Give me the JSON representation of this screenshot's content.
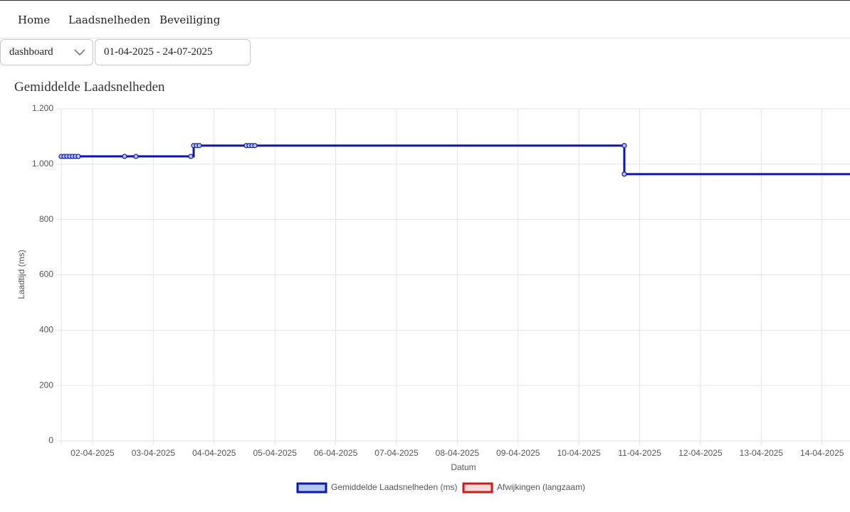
{
  "nav": {
    "items": [
      "Home",
      "Laadsnelheden",
      "Beveiliging"
    ]
  },
  "filters": {
    "page_select": "dashboard",
    "date_range": "01-04-2025 - 24-07-2025"
  },
  "heading": "Gemiddelde Laadsnelheden",
  "chart_data": {
    "type": "step-line",
    "xlabel": "Datum",
    "ylabel": "Laadtijd (ms)",
    "xlim": [
      "2025-04-01T11:38",
      "2025-04-14T11:02"
    ],
    "xticks": [
      {
        "value": "2025-04-02T00:00",
        "label": "02-04-2025"
      },
      {
        "value": "2025-04-03T00:00",
        "label": "03-04-2025"
      },
      {
        "value": "2025-04-04T00:00",
        "label": "04-04-2025"
      },
      {
        "value": "2025-04-05T00:00",
        "label": "05-04-2025"
      },
      {
        "value": "2025-04-06T00:00",
        "label": "06-04-2025"
      },
      {
        "value": "2025-04-07T00:00",
        "label": "07-04-2025"
      },
      {
        "value": "2025-04-08T00:00",
        "label": "08-04-2025"
      },
      {
        "value": "2025-04-09T00:00",
        "label": "09-04-2025"
      },
      {
        "value": "2025-04-10T00:00",
        "label": "10-04-2025"
      },
      {
        "value": "2025-04-11T00:00",
        "label": "11-04-2025"
      },
      {
        "value": "2025-04-12T00:00",
        "label": "12-04-2025"
      },
      {
        "value": "2025-04-13T00:00",
        "label": "13-04-2025"
      },
      {
        "value": "2025-04-14T00:00",
        "label": "14-04-2025"
      }
    ],
    "ylim": [
      0,
      1200
    ],
    "yticks": [
      0,
      200,
      400,
      600,
      800,
      {
        "value": 1000,
        "label": "1.000"
      },
      {
        "value": 1200,
        "label": "1.200"
      }
    ],
    "grid": true,
    "legend": "bottom",
    "series": [
      {
        "name": "Gemiddelde Laadsnelheden (ms)",
        "color": "#0a14c0",
        "fill": "#b4c8f0",
        "x": [
          "2025-04-01T11:38",
          "2025-04-01T12:46",
          "2025-04-01T13:52",
          "2025-04-01T15:00",
          "2025-04-01T16:07",
          "2025-04-01T17:15",
          "2025-04-01T18:22",
          "2025-04-02T12:39",
          "2025-04-02T17:08",
          "2025-04-03T14:47",
          "2025-04-03T15:55",
          "2025-04-03T17:02",
          "2025-04-03T18:09",
          "2025-04-04T12:42",
          "2025-04-04T13:49",
          "2025-04-04T14:57",
          "2025-04-04T16:05",
          "2025-04-10T17:56",
          "2025-04-10T17:56"
        ],
        "values": [
          1028,
          1028,
          1028,
          1028,
          1028,
          1028,
          1028,
          1028,
          1028,
          1028,
          1067,
          1067,
          1067,
          1067,
          1067,
          1067,
          1067,
          1067,
          964
        ]
      },
      {
        "name": "Afwijkingen (langzaam)",
        "color": "#d01818",
        "fill": "#f3dada",
        "x": [],
        "values": []
      }
    ]
  }
}
